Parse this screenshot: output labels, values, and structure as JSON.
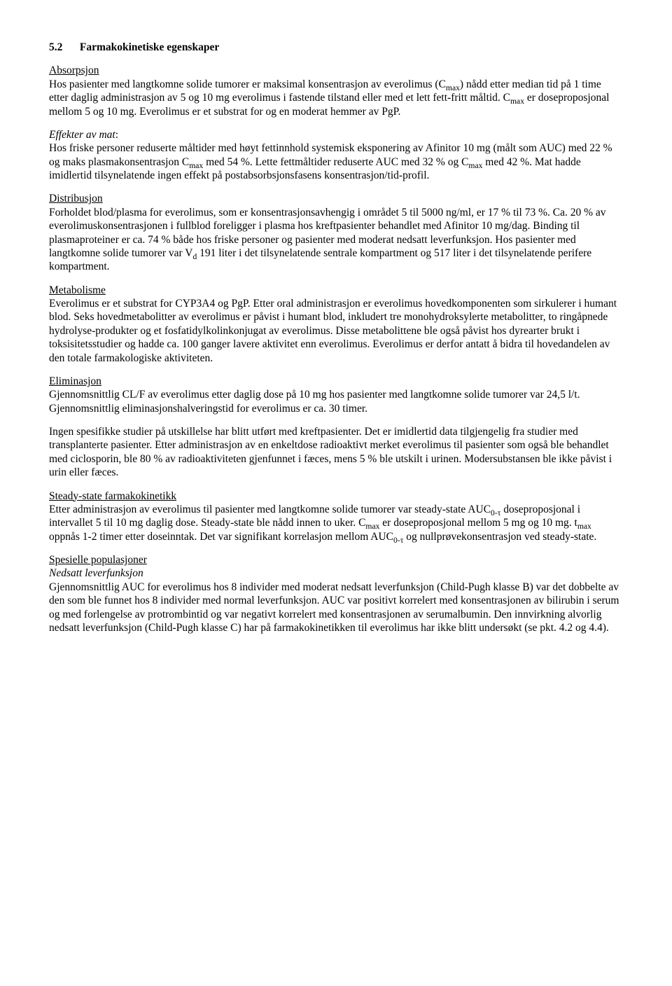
{
  "sectionNumber": "5.2",
  "sectionTitle": "Farmakokinetiske egenskaper",
  "absorpsjon": {
    "heading": "Absorpsjon",
    "p1a": "Hos pasienter med langtkomne solide tumorer er maksimal konsentrasjon av everolimus (C",
    "p1b": ") nådd etter median tid på 1 time etter daglig administrasjon av 5 og 10 mg everolimus i fastende tilstand eller med et lett fett-fritt måltid. C",
    "p1c": " er doseproposjonal mellom 5 og 10 mg. Everolimus er et substrat for og en moderat hemmer av PgP.",
    "effHeading": "Effekter av mat",
    "p2a": "Hos friske personer reduserte måltider med høyt fettinnhold systemisk eksponering av Afinitor 10 mg (målt som AUC) med 22 % og maks plasmakonsentrasjon C",
    "p2b": " med 54 %. Lette fettmåltider reduserte AUC med 32 % og C",
    "p2c": " med 42 %. Mat hadde imidlertid tilsynelatende ingen effekt på postabsorbsjonsfasens konsentrasjon/tid-profil."
  },
  "distribusjon": {
    "heading": "Distribusjon",
    "p1a": "Forholdet blod/plasma for everolimus, som er konsentrasjonsavhengig i området 5 til 5000 ng/ml, er 17 % til 73 %. Ca. 20 % av everolimuskonsentrasjonen i fullblod foreligger i plasma hos kreftpasienter behandlet med Afinitor 10 mg/dag. Binding til plasmaproteiner er ca. 74 % både hos friske personer og pasienter med moderat nedsatt leverfunksjon. Hos pasienter med langtkomne solide tumorer var V",
    "p1b": " 191 liter i det tilsynelatende sentrale kompartment og 517 liter i det tilsynelatende perifere kompartment."
  },
  "metabolisme": {
    "heading": "Metabolisme",
    "p1": "Everolimus er et substrat for CYP3A4 og PgP. Etter oral administrasjon er everolimus hovedkomponenten som sirkulerer i humant blod. Seks hovedmetabolitter av everolimus er påvist i humant blod, inkludert tre monohydroksylerte metabolitter, to ringåpnede hydrolyse-produkter og et fosfatidylkolinkonjugat av everolimus. Disse metabolittene ble også påvist hos dyrearter brukt i toksisitetsstudier og hadde ca. 100 ganger lavere aktivitet enn everolimus. Everolimus er derfor antatt å bidra til hovedandelen av den totale farmakologiske aktiviteten."
  },
  "eliminasjon": {
    "heading": "Eliminasjon",
    "p1": "Gjennomsnittlig CL/F av everolimus etter daglig dose på 10 mg hos pasienter med langtkomne solide tumorer var 24,5 l/t. Gjennomsnittlig eliminasjonshalveringstid for everolimus er ca. 30 timer.",
    "p2": "Ingen spesifikke studier på utskillelse har blitt utført med kreftpasienter. Det er imidlertid data tilgjengelig fra studier med transplanterte pasienter. Etter administrasjon av en enkeltdose radioaktivt merket everolimus til pasienter som også ble behandlet med ciclosporin, ble 80 % av radioaktiviteten gjenfunnet i fæces, mens 5 % ble utskilt i urinen. Modersubstansen ble ikke påvist i urin eller fæces."
  },
  "steadystate": {
    "heading": "Steady-state farmakokinetikk",
    "p1a": "Etter administrasjon av everolimus til pasienter med langtkomne solide tumorer var steady-state AUC",
    "p1b": " doseproposjonal i intervallet 5 til 10 mg daglig dose. Steady-state ble nådd innen to uker. C",
    "p1c": " er doseproposjonal mellom 5 mg og 10 mg. t",
    "p1d": " oppnås 1-2 timer etter doseinntak. Det var signifikant korrelasjon mellom AUC",
    "p1e": " og nullprøvekonsentrasjon ved steady-state."
  },
  "spesielle": {
    "heading": "Spesielle populasjoner",
    "subheading": "Nedsatt leverfunksjon",
    "p1": "Gjennomsnittlig AUC for everolimus hos 8 individer med moderat nedsatt leverfunksjon (Child-Pugh klasse B) var det dobbelte av den som ble funnet hos 8 individer med normal leverfunksjon. AUC var positivt korrelert med konsentrasjonen av bilirubin i serum og med forlengelse av protrombintid og var negativt korrelert med konsentrasjonen av serumalbumin. Den innvirkning alvorlig nedsatt leverfunksjon (Child-Pugh klasse C) har på farmakokinetikken til everolimus har ikke blitt undersøkt (se pkt. 4.2 og 4.4)."
  },
  "sub": {
    "max": "max",
    "d": "d",
    "zerotau": "0-τ"
  }
}
